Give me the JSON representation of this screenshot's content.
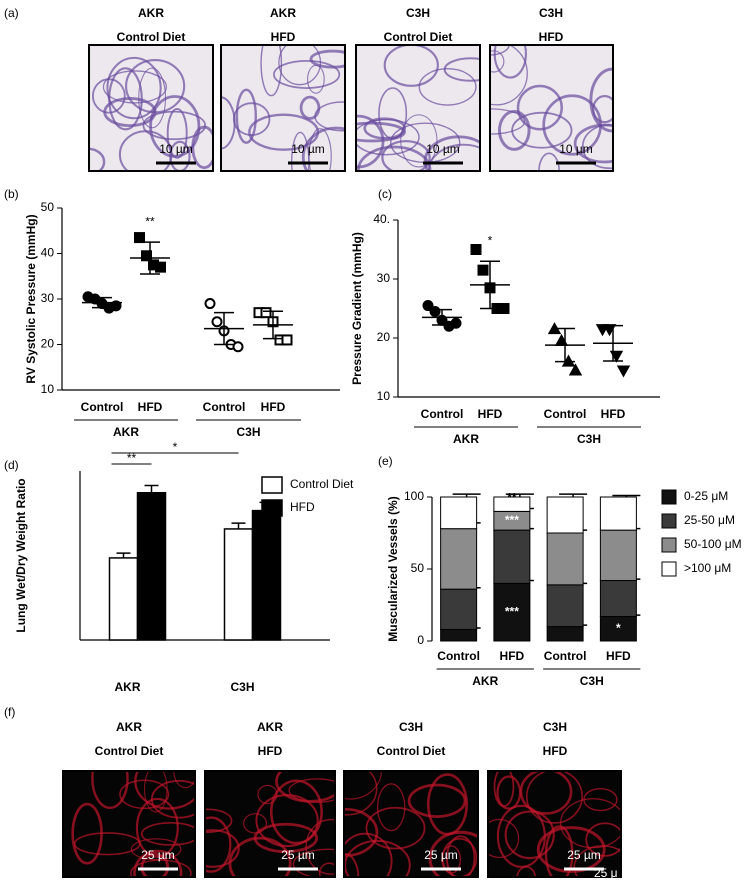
{
  "figure": {
    "panel_labels": [
      "(a)",
      "(b)",
      "(c)",
      "(d)",
      "(e)",
      "(f)"
    ],
    "histology": {
      "titles": [
        [
          "AKR",
          "Control Diet"
        ],
        [
          "AKR",
          "HFD"
        ],
        [
          "C3H",
          "Control Diet"
        ],
        [
          "C3H",
          "HFD"
        ]
      ],
      "scale_bar": "10 µm"
    },
    "fluorescence": {
      "titles": [
        [
          "AKR",
          "Control Diet"
        ],
        [
          "AKR",
          "HFD"
        ],
        [
          "C3H",
          "Control Diet"
        ],
        [
          "C3H",
          "HFD"
        ]
      ],
      "scale_bar": "25 µm",
      "extra_text": "25 μ"
    }
  },
  "chart_data": [
    {
      "type": "dot",
      "ylabel": "RV Systolic Pressure  (mmHg)",
      "categories": [
        "Control",
        "HFD",
        "Control",
        "HFD"
      ],
      "groups": [
        "AKR",
        "C3H"
      ],
      "ylim": [
        10,
        50
      ],
      "yticks": [
        10,
        20,
        30,
        40,
        50
      ],
      "points": [
        [
          30.5,
          30,
          29,
          28,
          28.5
        ],
        [
          43.5,
          39.5,
          37.5,
          37
        ],
        [
          29,
          25,
          23,
          20,
          19.5
        ],
        [
          27,
          27,
          25,
          21,
          21
        ]
      ],
      "means": [
        29.2,
        39,
        23.5,
        24.3
      ],
      "sd": [
        1.1,
        3.5,
        3.5,
        3
      ],
      "markers": [
        "circle",
        "square",
        "circle",
        "square"
      ],
      "filled": [
        true,
        true,
        false,
        false
      ],
      "annotations": [
        null,
        "**",
        null,
        null
      ]
    },
    {
      "type": "dot",
      "ylabel": "Pressure Gradient  (mmHg)",
      "categories": [
        "Control",
        "HFD",
        "Control",
        "HFD"
      ],
      "groups": [
        "AKR",
        "C3H"
      ],
      "ylim": [
        10,
        40
      ],
      "yticks": [
        10,
        20,
        30,
        {
          "value": 40,
          "label": "40."
        }
      ],
      "points": [
        [
          25.5,
          24.5,
          23,
          22,
          22.5
        ],
        [
          35,
          31.5,
          28.5,
          25,
          25
        ],
        [
          21.5,
          19.5,
          16,
          14.5
        ],
        [
          21.5,
          21.5,
          17,
          14.5
        ]
      ],
      "means": [
        23.5,
        29,
        18.8,
        19.1
      ],
      "sd": [
        1.3,
        4,
        2.8,
        3
      ],
      "markers": [
        "circle",
        "square",
        "triangle",
        "triangle-down"
      ],
      "filled": [
        true,
        true,
        true,
        true
      ],
      "annotations": [
        null,
        "*",
        null,
        null
      ]
    },
    {
      "type": "grouped-bar",
      "ylabel": "Lung Wet/Dry  Weight  Ratio",
      "categories": [
        "AKR",
        "C3H"
      ],
      "ylim": [
        0,
        3.5
      ],
      "series": [
        {
          "name": "Control Diet",
          "color": "#ffffff",
          "values": [
            1.7,
            2.3
          ],
          "errors": [
            0.1,
            0.12
          ]
        },
        {
          "name": "HFD",
          "color": "#000000",
          "values": [
            3.05,
            2.68
          ],
          "errors": [
            0.15,
            0.17
          ]
        }
      ],
      "significance": [
        {
          "text": "**",
          "from": [
            0,
            0
          ],
          "to": [
            1,
            0
          ]
        },
        {
          "text": "*",
          "from": [
            0,
            0
          ],
          "to": [
            0,
            1
          ]
        }
      ],
      "legend": "top-right"
    },
    {
      "type": "stacked-bar",
      "ylabel": "Muscularized Vessels (%)",
      "categories": [
        "Control",
        "HFD",
        "Control",
        "HFD"
      ],
      "groups": [
        "AKR",
        "C3H"
      ],
      "ylim": [
        0,
        100
      ],
      "yticks": [
        0,
        50,
        100
      ],
      "series": [
        {
          "name": "0-25 μM",
          "color": "#111111",
          "values": [
            8,
            40,
            10,
            17
          ],
          "errors": [
            1,
            2,
            1,
            1
          ],
          "annotations": [
            null,
            "***",
            null,
            "*"
          ]
        },
        {
          "name": "25-50 μM",
          "color": "#3a3a3a",
          "values": [
            28,
            37,
            29,
            25
          ],
          "errors": [
            1,
            1,
            1,
            1
          ],
          "annotations": [
            null,
            null,
            null,
            null
          ]
        },
        {
          "name": "50-100 μM",
          "color": "#8c8c8c",
          "values": [
            42,
            13,
            36,
            35
          ],
          "errors": [
            4,
            2,
            2,
            1
          ],
          "annotations": [
            null,
            "***",
            null,
            null
          ]
        },
        {
          "name": ">100 μM",
          "color": "#ffffff",
          "values": [
            22,
            10,
            25,
            23
          ],
          "errors": [
            2,
            2,
            2,
            1
          ],
          "annotations": [
            null,
            "**",
            null,
            null
          ]
        }
      ],
      "legend": "right"
    }
  ]
}
